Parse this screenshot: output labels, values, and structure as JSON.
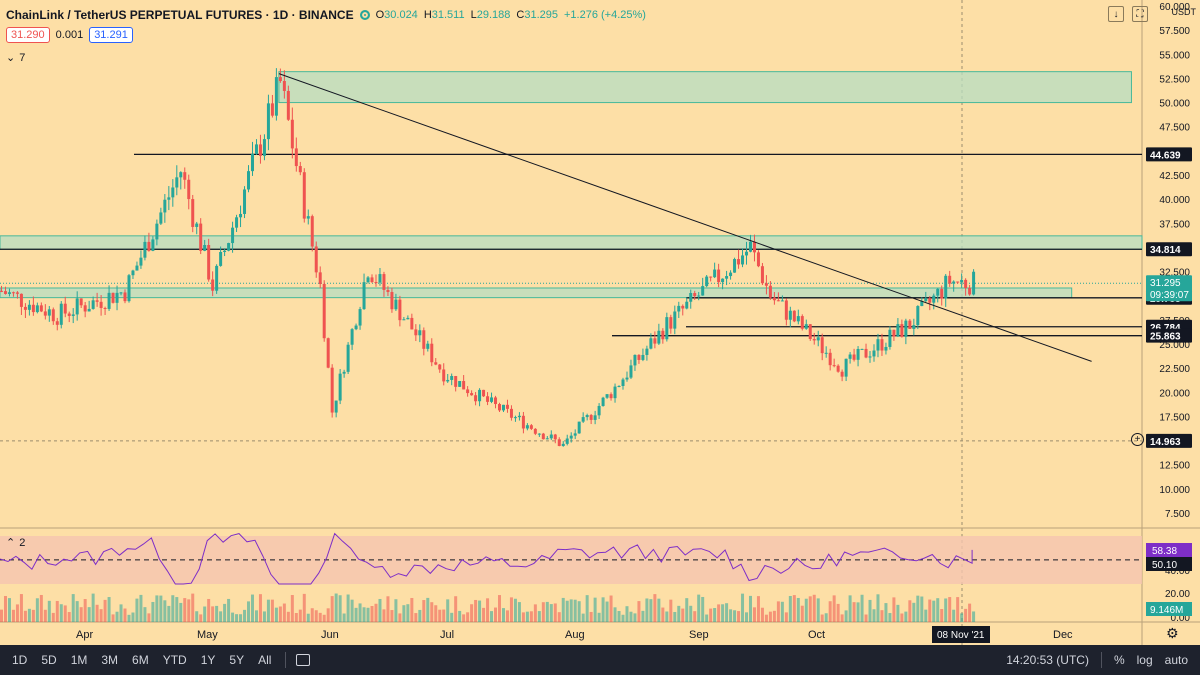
{
  "header": {
    "symbol": "ChainLink / TetherUS PERPETUAL FUTURES · 1D · BINANCE",
    "open_label": "O",
    "open": "30.024",
    "high_label": "H",
    "high": "31.511",
    "low_label": "L",
    "low": "29.188",
    "close_label": "C",
    "close": "31.295",
    "change": "+1.276 (+4.25%)"
  },
  "quote": {
    "bid": "31.290",
    "spread": "0.001",
    "ask": "31.291"
  },
  "indicators_count": "7",
  "rsi_pane_label": "2",
  "price_axis": {
    "currency": "USDT",
    "ticks": [
      "60.000",
      "57.500",
      "55.000",
      "52.500",
      "50.000",
      "47.500",
      "45.000",
      "42.500",
      "40.000",
      "37.500",
      "35.000",
      "32.500",
      "30.000",
      "27.500",
      "25.000",
      "22.500",
      "20.000",
      "17.500",
      "15.000",
      "12.500",
      "10.000",
      "7.500"
    ],
    "price_badges": [
      {
        "text": "44.639",
        "value": 44.639
      },
      {
        "text": "34.814",
        "value": 34.814
      },
      {
        "text": "29.785",
        "value": 29.785
      },
      {
        "text": "26.784",
        "value": 26.784
      },
      {
        "text": "25.863",
        "value": 25.863
      },
      {
        "text": "14.963",
        "value": 14.963
      }
    ],
    "last_price": {
      "text": "31.295",
      "value": 31.295
    },
    "countdown": "09:39:07"
  },
  "lower_axis": {
    "ticks": [
      "40.00",
      "20.00",
      "0.00"
    ],
    "rsi_badge": "58.38",
    "rsi_mid_badge": "50.10",
    "volume_badge": "9.146M"
  },
  "time_axis": {
    "months": [
      "Apr",
      "May",
      "Jun",
      "Jul",
      "Aug",
      "Sep",
      "Oct",
      "No",
      "Dec"
    ],
    "crosshair_date": "08 Nov '21"
  },
  "toolbar": {
    "ranges": [
      "1D",
      "5D",
      "1M",
      "3M",
      "6M",
      "YTD",
      "1Y",
      "5Y",
      "All"
    ],
    "time": "14:20:53 (UTC)",
    "pct": "%",
    "log": "log",
    "auto": "auto"
  },
  "chart_data": {
    "type": "candlestick",
    "symbol": "LINKUSDT",
    "ylim": [
      6.0,
      60.0
    ],
    "x_range": [
      "2021-03-01",
      "2021-12-14"
    ],
    "colors": {
      "up": "#26a69a",
      "down": "#ef5350",
      "zone": "#b5ddc2",
      "rsi_band": "#f5c4b0",
      "rsi_line": "#7e2ec7",
      "background": "#fddfa6"
    },
    "key_points": [
      {
        "date": "2021-03-01",
        "price": 30.5
      },
      {
        "date": "2021-03-15",
        "price": 28.0
      },
      {
        "date": "2021-04-01",
        "price": 30.5
      },
      {
        "date": "2021-04-15",
        "price": 43.0
      },
      {
        "date": "2021-04-23",
        "price": 31.0
      },
      {
        "date": "2021-05-10",
        "price": 52.0
      },
      {
        "date": "2021-05-20",
        "price": 31.0
      },
      {
        "date": "2021-05-23",
        "price": 18.0
      },
      {
        "date": "2021-06-01",
        "price": 33.0
      },
      {
        "date": "2021-06-20",
        "price": 22.0
      },
      {
        "date": "2021-07-01",
        "price": 19.0
      },
      {
        "date": "2021-07-20",
        "price": 14.5
      },
      {
        "date": "2021-08-01",
        "price": 20.0
      },
      {
        "date": "2021-08-15",
        "price": 27.0
      },
      {
        "date": "2021-09-05",
        "price": 35.0
      },
      {
        "date": "2021-09-10",
        "price": 30.0
      },
      {
        "date": "2021-09-28",
        "price": 22.5
      },
      {
        "date": "2021-10-15",
        "price": 27.0
      },
      {
        "date": "2021-10-25",
        "price": 31.5
      },
      {
        "date": "2021-10-31",
        "price": 31.3
      }
    ],
    "horizontal_levels": [
      44.639,
      34.814,
      29.785,
      26.784,
      25.863
    ],
    "zones": [
      {
        "from": "2021-05-10",
        "to": "2021-12-10",
        "low": 50.0,
        "high": 53.2
      },
      {
        "from": "2021-03-01",
        "to": "2021-12-31",
        "low": 34.8,
        "high": 36.2
      },
      {
        "from": "2021-03-01",
        "to": "2021-11-25",
        "low": 29.8,
        "high": 30.8
      }
    ],
    "trendline": {
      "from": {
        "date": "2021-05-10",
        "price": 53.0
      },
      "to": {
        "date": "2021-11-30",
        "price": 23.2
      }
    },
    "rsi": {
      "band": [
        30,
        70
      ],
      "midline": 50.1,
      "last": 58.38
    },
    "volume_last": "9.146M"
  }
}
